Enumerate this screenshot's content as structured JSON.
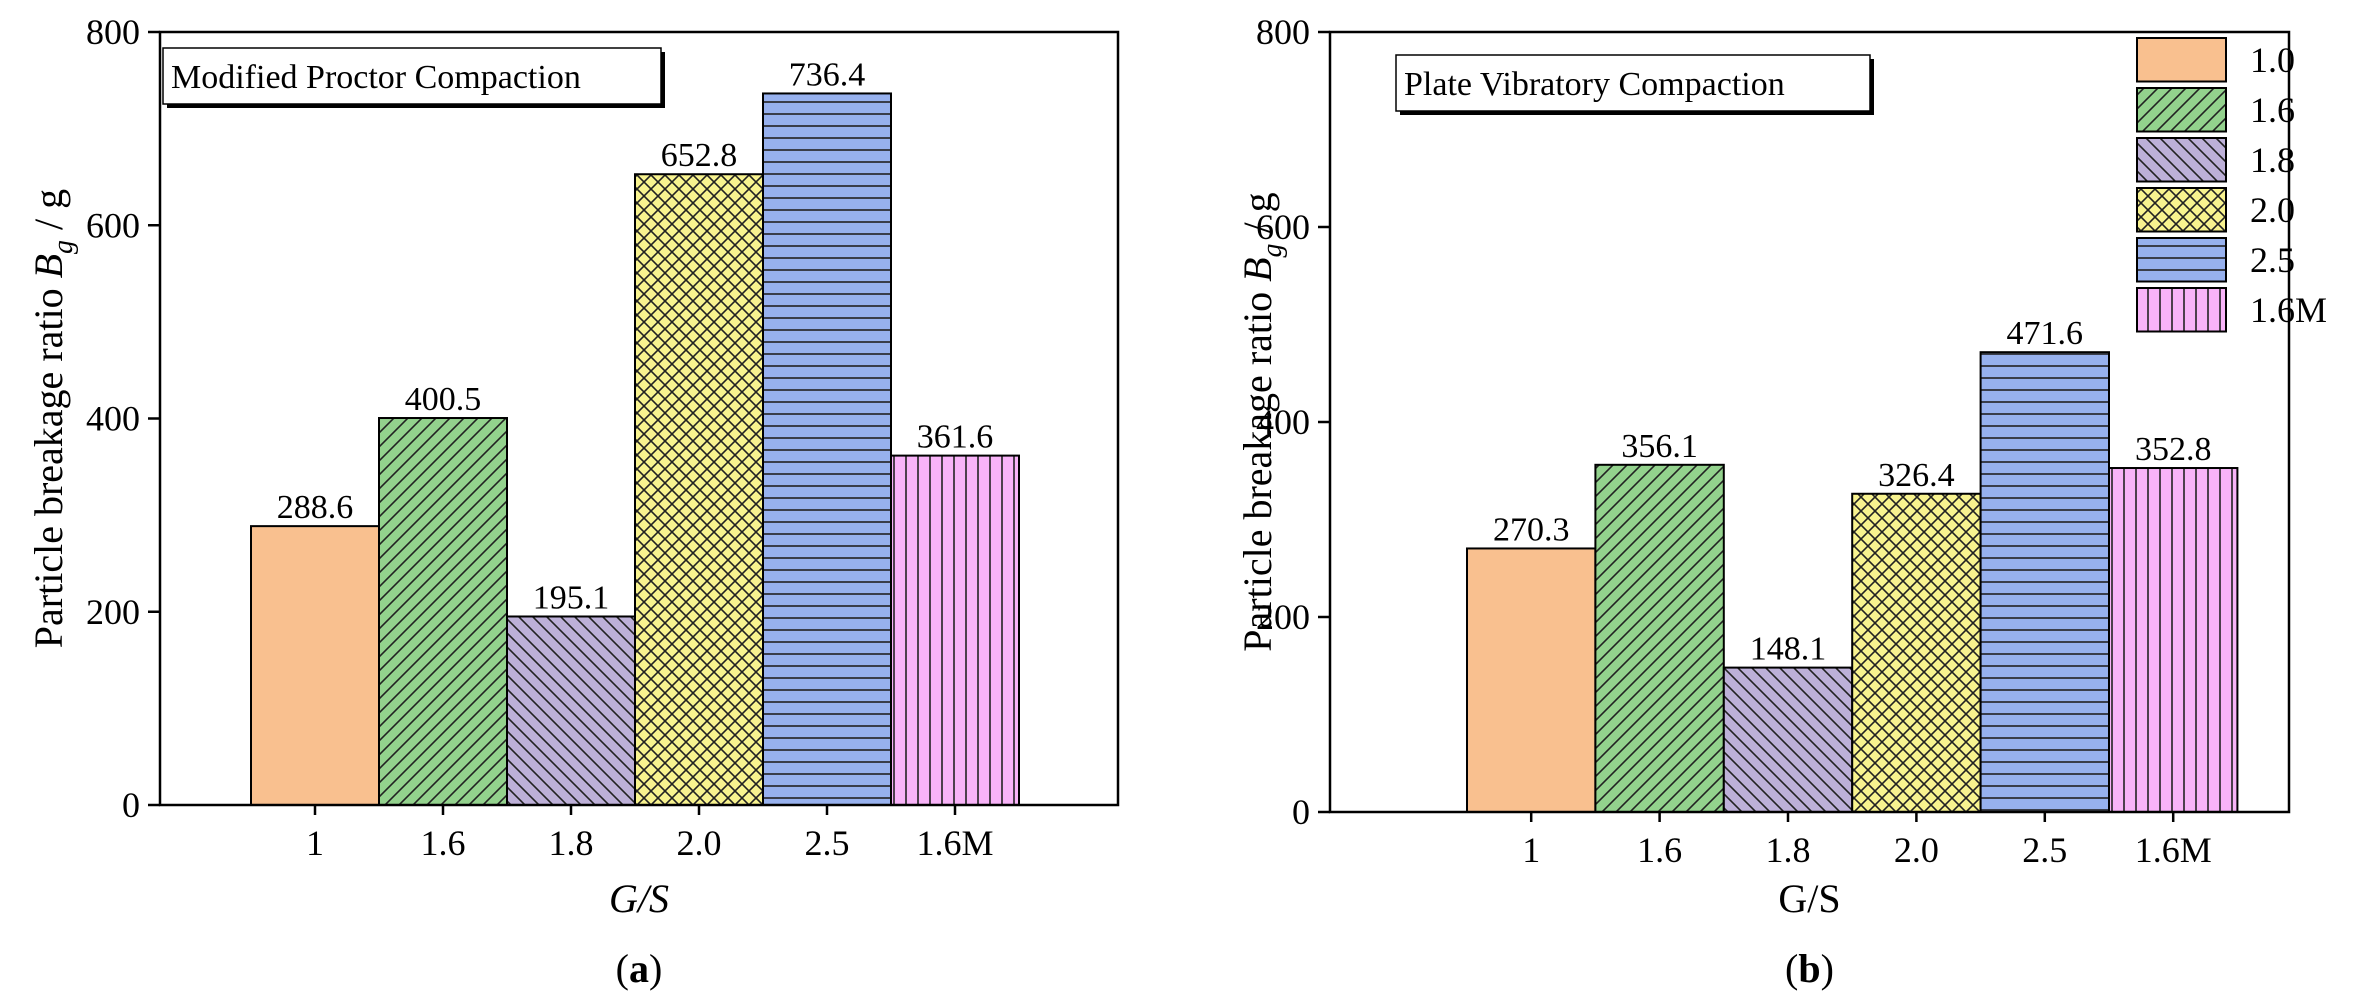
{
  "chart_data": [
    {
      "type": "bar",
      "panel_label": "a",
      "title": "Modified Proctor Compaction",
      "categories": [
        "1",
        "1.6",
        "1.8",
        "2.0",
        "2.5",
        "1.6M"
      ],
      "values": [
        288.6,
        400.5,
        195.1,
        652.8,
        736.4,
        361.6
      ],
      "data_labels": [
        "288.6",
        "400.5",
        "195.1",
        "652.8",
        "736.4",
        "361.6"
      ],
      "xlabel": "G/S",
      "ylabel_prefix": "Particle breakage ratio ",
      "ylabel_var": "B",
      "ylabel_sub": "g",
      "ylabel_suffix": " / g",
      "ylim": [
        0,
        800
      ],
      "yticks": [
        0,
        200,
        400,
        600,
        800
      ],
      "ytick_labels": [
        "0",
        "200",
        "400",
        "600",
        "800"
      ],
      "legend": false,
      "grid": false
    },
    {
      "type": "bar",
      "panel_label": "b",
      "title": "Plate Vibratory Compaction",
      "categories": [
        "1",
        "1.6",
        "1.8",
        "2.0",
        "2.5",
        "1.6M"
      ],
      "values": [
        270.3,
        356.1,
        148.1,
        326.4,
        471.6,
        352.8
      ],
      "data_labels": [
        "270.3",
        "356.1",
        "148.1",
        "326.4",
        "471.6",
        "352.8"
      ],
      "xlabel": "G/S",
      "ylabel_prefix": "Particle breakage ratio ",
      "ylabel_var": "B",
      "ylabel_sub": "g",
      "ylabel_suffix": " / g",
      "ylim": [
        0,
        800
      ],
      "yticks": [
        0,
        200,
        400,
        600,
        800
      ],
      "ytick_labels": [
        "0",
        "200",
        "400",
        "600",
        "800"
      ],
      "legend": true,
      "legend_position": "top-right",
      "legend_entries": [
        "1.0",
        "1.6",
        "1.8",
        "2.0",
        "2.5",
        "1.6M"
      ],
      "grid": false
    }
  ],
  "series_colors": [
    "#f9c08f",
    "#93d28d",
    "#bdb0d8",
    "#f8f38f",
    "#97b1ee",
    "#f8b3f8"
  ],
  "series_patterns": [
    "solid",
    "diag-up",
    "diag-down",
    "crosshatch",
    "horizontal",
    "vertical"
  ]
}
